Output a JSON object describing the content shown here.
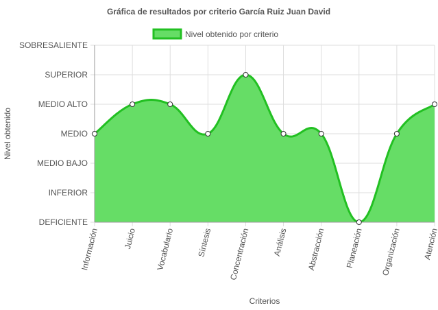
{
  "chart_data": {
    "type": "area",
    "title": "Gráfica de resultados por criterio García Ruiz Juan David",
    "xlabel": "Criterios",
    "ylabel": "Nivel obtenido",
    "categories": [
      "Información",
      "Juicio",
      "Vocabulario",
      "Síntesis",
      "Concentración",
      "Análisis",
      "Abstracción",
      "Planeación",
      "Organización",
      "Atención"
    ],
    "y_levels": [
      "DEFICIENTE",
      "INFERIOR",
      "MEDIO BAJO",
      "MEDIO",
      "MEDIO ALTO",
      "SUPERIOR",
      "SOBRESALIENTE"
    ],
    "series": [
      {
        "name": "Nivel obtenido por criterio",
        "values": [
          3,
          4,
          4,
          3,
          5,
          3,
          3,
          0,
          3,
          4
        ],
        "fill_color": "#66dd66",
        "line_color": "#22c022"
      }
    ],
    "ylim": [
      0,
      6
    ],
    "grid": true,
    "legend_position": "top"
  }
}
